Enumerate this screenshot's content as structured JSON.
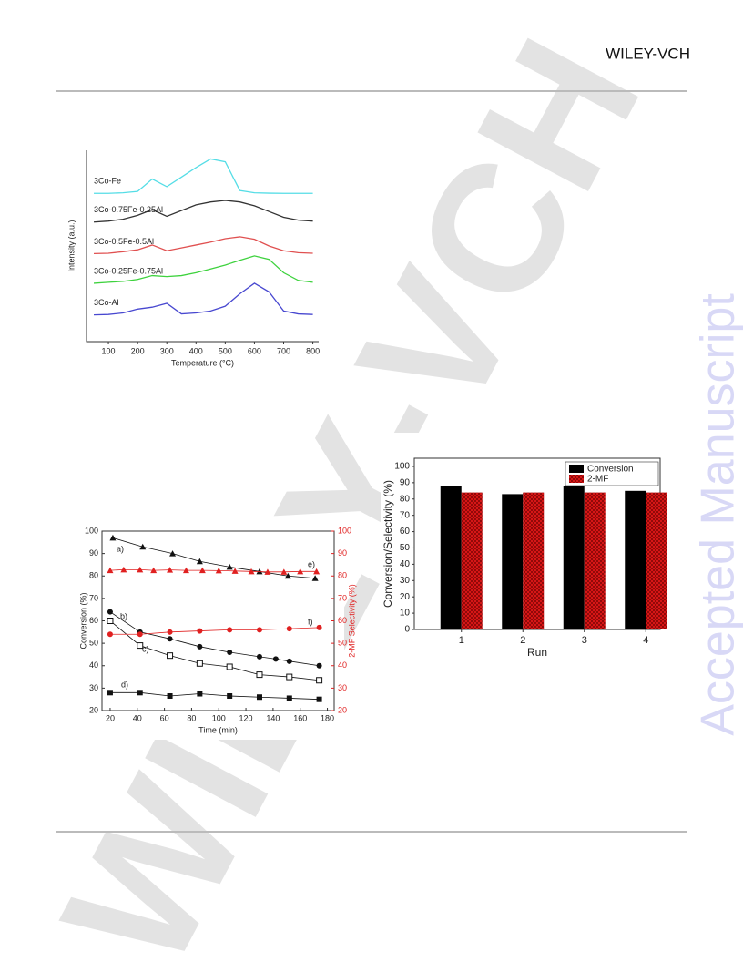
{
  "header": {
    "brand": "WILEY-VCH"
  },
  "watermark": {
    "diagonal": "WILEY-VCH",
    "side": "Accepted Manuscript"
  },
  "chart_data": [
    {
      "type": "line",
      "xlabel": "Temperature (°C)",
      "ylabel": "Intensity (a.u.)",
      "x": [
        50,
        100,
        150,
        200,
        250,
        300,
        350,
        400,
        450,
        500,
        550,
        600,
        650,
        700,
        750,
        800
      ],
      "xlim": [
        25,
        820
      ],
      "xticks": [
        100,
        200,
        300,
        400,
        500,
        600,
        700,
        800
      ],
      "ylim": [
        0,
        10
      ],
      "series": [
        {
          "name": "3Co-Fe",
          "color": "#55dde6",
          "values": [
            7.75,
            7.75,
            7.78,
            7.85,
            8.5,
            8.1,
            8.6,
            9.1,
            9.55,
            9.4,
            7.9,
            7.78,
            7.76,
            7.75,
            7.75,
            7.75
          ]
        },
        {
          "name": "3Co-0.75Fe-0.25Al",
          "color": "#333333",
          "values": [
            6.25,
            6.3,
            6.4,
            6.6,
            6.9,
            6.55,
            6.85,
            7.15,
            7.3,
            7.38,
            7.3,
            7.1,
            6.8,
            6.5,
            6.35,
            6.3
          ]
        },
        {
          "name": "3Co-0.5Fe-0.5Al",
          "color": "#e05050",
          "values": [
            4.6,
            4.62,
            4.7,
            4.8,
            5.05,
            4.75,
            4.9,
            5.05,
            5.2,
            5.38,
            5.48,
            5.35,
            5.0,
            4.75,
            4.65,
            4.62
          ]
        },
        {
          "name": "3Co-0.25Fe-0.75Al",
          "color": "#3ed23e",
          "values": [
            3.05,
            3.1,
            3.15,
            3.25,
            3.45,
            3.4,
            3.45,
            3.6,
            3.8,
            4.0,
            4.25,
            4.48,
            4.3,
            3.6,
            3.2,
            3.1
          ]
        },
        {
          "name": "3Co-Al",
          "color": "#4848d0",
          "values": [
            1.4,
            1.42,
            1.5,
            1.7,
            1.8,
            2.0,
            1.45,
            1.5,
            1.6,
            1.85,
            2.5,
            3.05,
            2.6,
            1.6,
            1.45,
            1.42
          ]
        }
      ]
    },
    {
      "type": "scatter-line",
      "xlabel": "Time (min)",
      "ylabel": "Conversion (%)",
      "y2label": "2-MF Selectivity (%)",
      "xlim": [
        14,
        185
      ],
      "xticks": [
        20,
        40,
        60,
        80,
        100,
        120,
        140,
        160,
        180
      ],
      "ylim": [
        20,
        100
      ],
      "yticks": [
        20,
        30,
        40,
        50,
        60,
        70,
        80,
        90,
        100
      ],
      "y2lim": [
        20,
        100
      ],
      "y2ticks": [
        20,
        30,
        40,
        50,
        60,
        70,
        80,
        90,
        100
      ],
      "y2color": "#e02020",
      "series": [
        {
          "name": "a)",
          "color": "#111111",
          "marker": "triangle",
          "x": [
            22,
            44,
            66,
            86,
            108,
            130,
            151,
            171
          ],
          "values": [
            97,
            93,
            90,
            86.5,
            84,
            82,
            80,
            79
          ]
        },
        {
          "name": "b)",
          "color": "#111111",
          "marker": "circle",
          "x": [
            20,
            42,
            64,
            86,
            108,
            130,
            142,
            152,
            174
          ],
          "values": [
            64,
            55,
            52,
            48.5,
            46,
            44,
            43,
            42,
            40
          ]
        },
        {
          "name": "c)",
          "color": "#111111",
          "marker": "open-square",
          "x": [
            20,
            42,
            64,
            86,
            108,
            130,
            152,
            174
          ],
          "values": [
            60,
            49,
            44.5,
            41,
            39.5,
            36,
            35,
            33.5
          ]
        },
        {
          "name": "d)",
          "color": "#111111",
          "marker": "square",
          "x": [
            20,
            42,
            64,
            86,
            108,
            130,
            152,
            174
          ],
          "values": [
            28,
            28,
            26.5,
            27.5,
            26.5,
            26,
            25.5,
            25
          ]
        },
        {
          "name": "e)",
          "color": "#e02020",
          "marker": "triangle",
          "axis": "y2",
          "x": [
            20,
            30,
            42,
            52,
            64,
            76,
            88,
            100,
            112,
            124,
            136,
            148,
            160,
            172
          ],
          "values": [
            82.5,
            82.8,
            82.8,
            82.5,
            82.7,
            82.5,
            82.5,
            82.4,
            82.2,
            82,
            81.8,
            81.8,
            82,
            82
          ]
        },
        {
          "name": "f)",
          "color": "#e02020",
          "marker": "circle",
          "axis": "y2",
          "x": [
            20,
            42,
            64,
            86,
            108,
            130,
            152,
            174
          ],
          "values": [
            54,
            54,
            55,
            55.5,
            56,
            56,
            56.5,
            57
          ]
        }
      ]
    },
    {
      "type": "bar",
      "xlabel": "Run",
      "ylabel": "Conversion/Selectivity (%)",
      "categories": [
        "1",
        "2",
        "3",
        "4"
      ],
      "ylim": [
        0,
        105
      ],
      "yticks": [
        0,
        10,
        20,
        30,
        40,
        50,
        60,
        70,
        80,
        90,
        100
      ],
      "legend": "top-right",
      "series": [
        {
          "name": "Conversion",
          "color": "#000000",
          "values": [
            88,
            83,
            88,
            85
          ]
        },
        {
          "name": "2-MF",
          "color": "#e01818",
          "hatch": true,
          "values": [
            84,
            84,
            84,
            84
          ]
        }
      ]
    }
  ]
}
